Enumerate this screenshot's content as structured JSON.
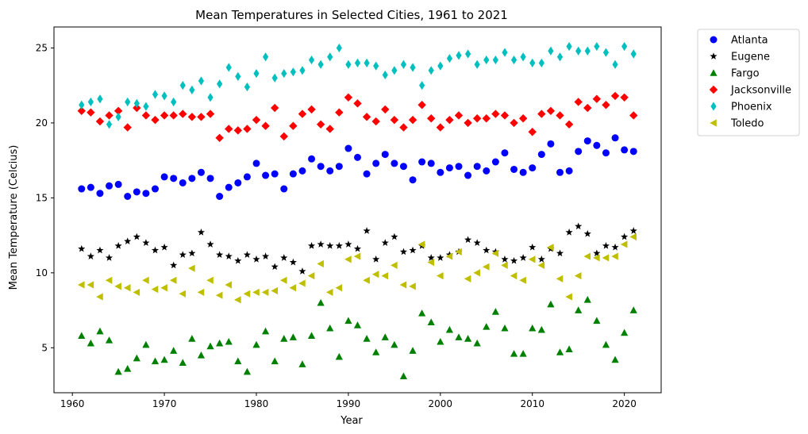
{
  "chart_data": {
    "type": "scatter",
    "title": "Mean Temperatures in Selected Cities, 1961 to 2021",
    "xlabel": "Year",
    "ylabel": "Mean Temperature (Celcius)",
    "xlim": [
      1958,
      2024
    ],
    "ylim": [
      2.0,
      26.4
    ],
    "xticks": [
      1960,
      1970,
      1980,
      1990,
      2000,
      2010,
      2020
    ],
    "yticks": [
      5,
      10,
      15,
      20,
      25
    ],
    "grid": false,
    "legend": "outside-top-right",
    "x": [
      1961,
      1962,
      1963,
      1964,
      1965,
      1966,
      1967,
      1968,
      1969,
      1970,
      1971,
      1972,
      1973,
      1974,
      1975,
      1976,
      1977,
      1978,
      1979,
      1980,
      1981,
      1982,
      1983,
      1984,
      1985,
      1986,
      1987,
      1988,
      1989,
      1990,
      1991,
      1992,
      1993,
      1994,
      1995,
      1996,
      1997,
      1998,
      1999,
      2000,
      2001,
      2002,
      2003,
      2004,
      2005,
      2006,
      2007,
      2008,
      2009,
      2010,
      2011,
      2012,
      2013,
      2014,
      2015,
      2016,
      2017,
      2018,
      2019,
      2020,
      2021
    ],
    "series": [
      {
        "name": "Atlanta",
        "marker": "circle",
        "color": "#0000ff",
        "values": [
          15.6,
          15.7,
          15.3,
          15.8,
          15.9,
          15.1,
          15.4,
          15.3,
          15.6,
          16.4,
          16.3,
          16.0,
          16.3,
          16.7,
          16.3,
          15.1,
          15.7,
          16.0,
          16.4,
          17.3,
          16.5,
          16.6,
          15.6,
          16.6,
          16.8,
          17.6,
          17.1,
          16.8,
          17.1,
          18.3,
          17.7,
          16.6,
          17.3,
          17.9,
          17.3,
          17.1,
          16.2,
          17.4,
          17.3,
          16.7,
          17.0,
          17.1,
          16.5,
          17.1,
          16.8,
          17.4,
          18.0,
          16.9,
          16.7,
          17.0,
          17.9,
          18.6,
          16.7,
          16.8,
          18.1,
          18.8,
          18.5,
          18.0,
          19.0,
          18.2,
          18.1
        ]
      },
      {
        "name": "Eugene",
        "marker": "star",
        "color": "#000000",
        "values": [
          11.6,
          11.1,
          11.5,
          11.0,
          11.8,
          12.1,
          12.4,
          12.0,
          11.5,
          11.7,
          10.5,
          11.2,
          11.3,
          12.7,
          11.9,
          11.2,
          11.1,
          10.8,
          11.2,
          10.9,
          11.1,
          10.4,
          11.0,
          10.7,
          10.1,
          11.8,
          11.9,
          11.8,
          11.8,
          11.9,
          11.6,
          12.8,
          10.9,
          12.0,
          12.4,
          11.4,
          11.5,
          11.8,
          11.0,
          11.0,
          11.2,
          11.4,
          12.2,
          12.0,
          11.5,
          11.4,
          10.9,
          10.8,
          11.0,
          11.7,
          10.9,
          11.6,
          11.3,
          12.7,
          13.1,
          12.6,
          11.3,
          11.8,
          11.7,
          12.4,
          12.8
        ]
      },
      {
        "name": "Fargo",
        "marker": "triangle-up",
        "color": "#008000",
        "values": [
          5.8,
          5.3,
          6.1,
          5.5,
          3.4,
          3.6,
          4.3,
          5.2,
          4.1,
          4.2,
          4.8,
          4.0,
          5.6,
          4.5,
          5.1,
          5.3,
          5.4,
          4.1,
          3.4,
          5.2,
          6.1,
          4.1,
          5.6,
          5.7,
          3.9,
          5.8,
          8.0,
          6.3,
          4.4,
          6.8,
          6.5,
          5.6,
          4.7,
          5.7,
          5.2,
          3.1,
          4.8,
          7.3,
          6.7,
          5.4,
          6.2,
          5.7,
          5.6,
          5.3,
          6.4,
          7.4,
          6.3,
          4.6,
          4.6,
          6.3,
          6.2,
          7.9,
          4.7,
          4.9,
          7.5,
          8.2,
          6.8,
          5.2,
          4.2,
          6.0,
          7.5
        ]
      },
      {
        "name": "Jacksonville",
        "marker": "diamond",
        "color": "#ff0000",
        "values": [
          20.8,
          20.7,
          20.1,
          20.5,
          20.8,
          19.7,
          21.0,
          20.5,
          20.2,
          20.5,
          20.5,
          20.6,
          20.4,
          20.4,
          20.6,
          19.0,
          19.6,
          19.5,
          19.6,
          20.2,
          19.8,
          21.0,
          19.1,
          19.8,
          20.6,
          20.9,
          19.9,
          19.6,
          20.7,
          21.7,
          21.3,
          20.4,
          20.1,
          20.9,
          20.2,
          19.7,
          20.2,
          21.2,
          20.3,
          19.7,
          20.2,
          20.5,
          20.0,
          20.3,
          20.3,
          20.6,
          20.5,
          20.0,
          20.3,
          19.4,
          20.6,
          20.8,
          20.5,
          19.9,
          21.4,
          21.0,
          21.6,
          21.2,
          21.8,
          21.7,
          20.5
        ]
      },
      {
        "name": "Phoenix",
        "marker": "thin-diamond",
        "color": "#00bfbf",
        "values": [
          21.2,
          21.4,
          21.6,
          19.9,
          20.4,
          21.4,
          21.3,
          21.1,
          21.9,
          21.8,
          21.4,
          22.5,
          22.2,
          22.8,
          21.7,
          22.6,
          23.7,
          23.1,
          22.4,
          23.3,
          24.4,
          23.0,
          23.3,
          23.4,
          23.5,
          24.2,
          23.9,
          24.4,
          25.0,
          23.9,
          24.0,
          24.0,
          23.8,
          23.2,
          23.5,
          23.9,
          23.7,
          22.5,
          23.5,
          23.8,
          24.3,
          24.5,
          24.6,
          23.9,
          24.2,
          24.2,
          24.7,
          24.2,
          24.4,
          24.0,
          24.0,
          24.8,
          24.4,
          25.1,
          24.8,
          24.8,
          25.1,
          24.7,
          23.9,
          25.1,
          24.6
        ]
      },
      {
        "name": "Toledo",
        "marker": "triangle-left",
        "color": "#bfbf00",
        "values": [
          9.2,
          9.2,
          8.4,
          9.5,
          9.1,
          9.0,
          8.7,
          9.5,
          8.9,
          9.0,
          9.5,
          8.6,
          10.3,
          8.7,
          9.5,
          8.5,
          9.2,
          8.2,
          8.6,
          8.7,
          8.7,
          8.8,
          9.5,
          9.0,
          9.3,
          9.8,
          10.6,
          8.7,
          9.0,
          10.9,
          11.1,
          9.5,
          9.9,
          9.8,
          10.5,
          9.2,
          9.1,
          11.9,
          10.7,
          9.8,
          11.1,
          11.4,
          9.6,
          10.0,
          10.4,
          11.3,
          10.5,
          9.8,
          9.5,
          10.9,
          10.5,
          11.7,
          9.6,
          8.4,
          9.8,
          11.1,
          11.0,
          11.0,
          11.1,
          11.9,
          12.4
        ]
      }
    ]
  }
}
